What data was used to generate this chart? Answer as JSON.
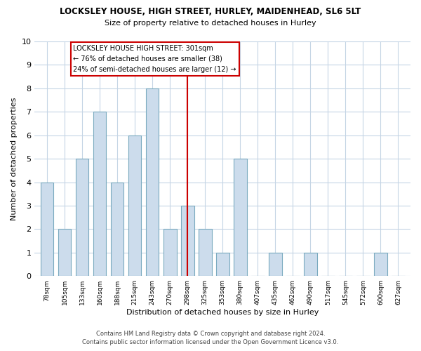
{
  "title": "LOCKSLEY HOUSE, HIGH STREET, HURLEY, MAIDENHEAD, SL6 5LT",
  "subtitle": "Size of property relative to detached houses in Hurley",
  "xlabel": "Distribution of detached houses by size in Hurley",
  "ylabel": "Number of detached properties",
  "bar_color": "#ccdcec",
  "bar_edge_color": "#7aaabf",
  "background_color": "#ffffff",
  "grid_color": "#c5d5e5",
  "bin_labels": [
    "78sqm",
    "105sqm",
    "133sqm",
    "160sqm",
    "188sqm",
    "215sqm",
    "243sqm",
    "270sqm",
    "298sqm",
    "325sqm",
    "353sqm",
    "380sqm",
    "407sqm",
    "435sqm",
    "462sqm",
    "490sqm",
    "517sqm",
    "545sqm",
    "572sqm",
    "600sqm",
    "627sqm"
  ],
  "bar_heights": [
    4,
    2,
    5,
    7,
    4,
    6,
    8,
    2,
    3,
    2,
    1,
    5,
    0,
    1,
    0,
    1,
    0,
    0,
    0,
    1,
    0
  ],
  "n_bins": 21,
  "marker_bin": 8,
  "marker_color": "#cc0000",
  "ylim": [
    0,
    10
  ],
  "yticks": [
    0,
    1,
    2,
    3,
    4,
    5,
    6,
    7,
    8,
    9,
    10
  ],
  "annotation_title": "LOCKSLEY HOUSE HIGH STREET: 301sqm",
  "annotation_line1": "← 76% of detached houses are smaller (38)",
  "annotation_line2": "24% of semi-detached houses are larger (12) →",
  "annotation_box_color": "#ffffff",
  "annotation_box_edge": "#cc0000",
  "footer_line1": "Contains HM Land Registry data © Crown copyright and database right 2024.",
  "footer_line2": "Contains public sector information licensed under the Open Government Licence v3.0."
}
